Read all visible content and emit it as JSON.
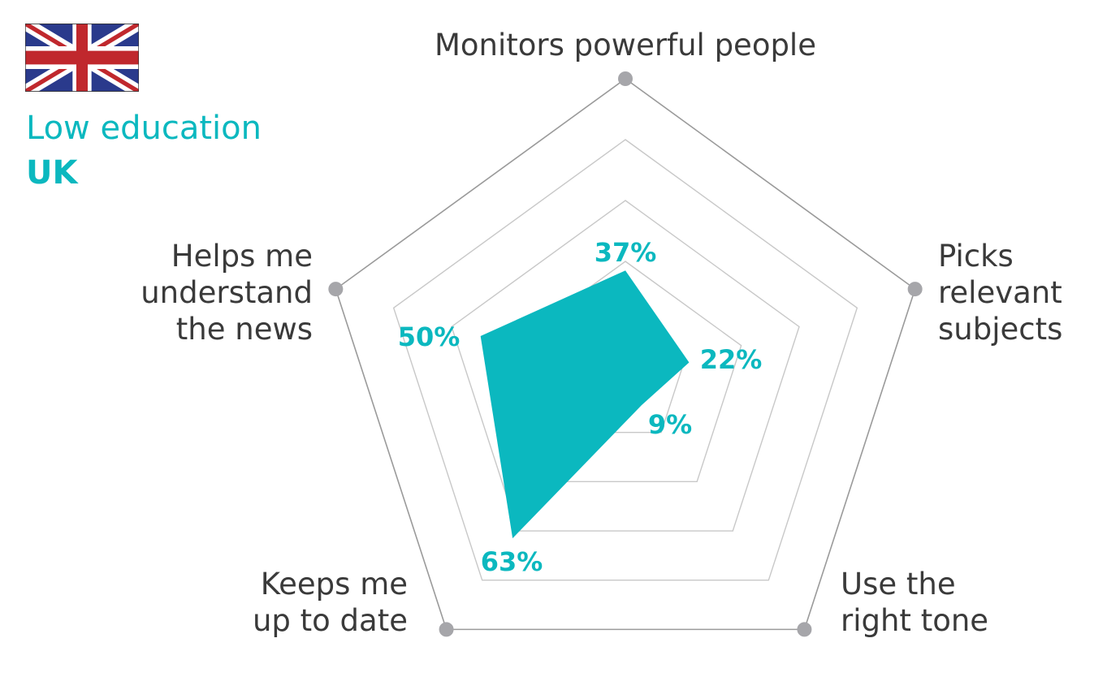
{
  "header": {
    "line1": "Low education",
    "line2": "UK",
    "flag": "uk-flag"
  },
  "colors": {
    "accent": "#0bb8bf",
    "grid": "#c8c8c8",
    "outer": "#9a9a9a",
    "text": "#3a3a3a"
  },
  "chart_data": {
    "type": "radar",
    "axes": [
      "Monitors powerful people",
      "Picks relevant subjects",
      "Use the right tone",
      "Keeps me up to date",
      "Helps me understand the news"
    ],
    "axis_label_lines": [
      [
        "Monitors powerful people"
      ],
      [
        "Picks",
        "relevant",
        "subjects"
      ],
      [
        "Use the",
        "right tone"
      ],
      [
        "Keeps me",
        "up to date"
      ],
      [
        "Helps me",
        "understand",
        "the news"
      ]
    ],
    "values": [
      37,
      22,
      9,
      63,
      50
    ],
    "value_labels": [
      "37%",
      "22%",
      "9%",
      "63%",
      "50%"
    ],
    "range": [
      0,
      100
    ],
    "grid_levels": [
      20,
      40,
      60,
      80,
      100
    ]
  }
}
